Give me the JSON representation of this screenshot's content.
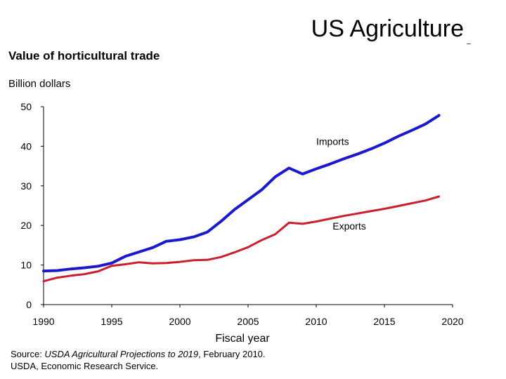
{
  "slide": {
    "title": "US Agriculture"
  },
  "source": {
    "prefix": "Source: ",
    "publication": "USDA Agricultural Projections to 2019",
    "date": ", February 2010.",
    "line2": "USDA, Economic Research Service."
  },
  "chart_data": {
    "type": "line",
    "title": "Value of horticultural trade",
    "ylabel": "Billion dollars",
    "xlabel": "Fiscal year",
    "xlim": [
      1990,
      2020
    ],
    "ylim": [
      0,
      50
    ],
    "xticks": [
      1990,
      1995,
      2000,
      2005,
      2010,
      2015,
      2020
    ],
    "yticks": [
      0,
      10,
      20,
      30,
      40,
      50
    ],
    "grid": false,
    "legend": "none",
    "series": [
      {
        "name": "Imports",
        "color": "#1a1acc",
        "x": [
          1990,
          1991,
          1992,
          1993,
          1994,
          1995,
          1996,
          1997,
          1998,
          1999,
          2000,
          2001,
          2002,
          2003,
          2004,
          2005,
          2006,
          2007,
          2008,
          2009,
          2010,
          2011,
          2012,
          2013,
          2014,
          2015,
          2016,
          2017,
          2018,
          2019
        ],
        "y": [
          8.5,
          8.6,
          9.0,
          9.3,
          9.7,
          10.5,
          12.2,
          13.3,
          14.4,
          16.0,
          16.4,
          17.1,
          18.3,
          21.0,
          24.0,
          26.5,
          29.0,
          32.3,
          34.5,
          33.0,
          34.3,
          35.5,
          36.8,
          38.0,
          39.3,
          40.8,
          42.5,
          44.0,
          45.6,
          47.8
        ]
      },
      {
        "name": "Exports",
        "color": "#cc1f2e",
        "x": [
          1990,
          1991,
          1992,
          1993,
          1994,
          1995,
          1996,
          1997,
          1998,
          1999,
          2000,
          2001,
          2002,
          2003,
          2004,
          2005,
          2006,
          2007,
          2008,
          2009,
          2010,
          2011,
          2012,
          2013,
          2014,
          2015,
          2016,
          2017,
          2018,
          2019
        ],
        "y": [
          5.9,
          6.8,
          7.3,
          7.7,
          8.4,
          9.8,
          10.2,
          10.7,
          10.4,
          10.5,
          10.8,
          11.2,
          11.3,
          12.0,
          13.2,
          14.5,
          16.3,
          17.8,
          20.7,
          20.4,
          21.0,
          21.7,
          22.4,
          23.0,
          23.6,
          24.2,
          24.9,
          25.6,
          26.3,
          27.3
        ]
      }
    ],
    "annotations": [
      {
        "text": "Imports",
        "x": 2010.0,
        "y": 40.3
      },
      {
        "text": "Exports",
        "x": 2011.2,
        "y": 19.0
      }
    ]
  }
}
